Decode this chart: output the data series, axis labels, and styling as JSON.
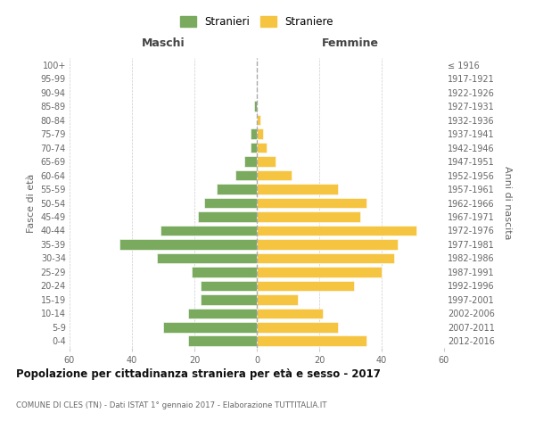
{
  "age_groups": [
    "100+",
    "95-99",
    "90-94",
    "85-89",
    "80-84",
    "75-79",
    "70-74",
    "65-69",
    "60-64",
    "55-59",
    "50-54",
    "45-49",
    "40-44",
    "35-39",
    "30-34",
    "25-29",
    "20-24",
    "15-19",
    "10-14",
    "5-9",
    "0-4"
  ],
  "birth_years": [
    "≤ 1916",
    "1917-1921",
    "1922-1926",
    "1927-1931",
    "1932-1936",
    "1937-1941",
    "1942-1946",
    "1947-1951",
    "1952-1956",
    "1957-1961",
    "1962-1966",
    "1967-1971",
    "1972-1976",
    "1977-1981",
    "1982-1986",
    "1987-1991",
    "1992-1996",
    "1997-2001",
    "2002-2006",
    "2007-2011",
    "2012-2016"
  ],
  "maschi": [
    0,
    0,
    0,
    1,
    0,
    2,
    2,
    4,
    7,
    13,
    17,
    19,
    31,
    44,
    32,
    21,
    18,
    18,
    22,
    30,
    22
  ],
  "femmine": [
    0,
    0,
    0,
    0,
    1,
    2,
    3,
    6,
    11,
    26,
    35,
    33,
    51,
    45,
    44,
    40,
    31,
    13,
    21,
    26,
    35
  ],
  "male_color": "#7aaa5e",
  "female_color": "#f5c542",
  "background_color": "#ffffff",
  "grid_color": "#cccccc",
  "title": "Popolazione per cittadinanza straniera per età e sesso - 2017",
  "subtitle": "COMUNE DI CLES (TN) - Dati ISTAT 1° gennaio 2017 - Elaborazione TUTTITALIA.IT",
  "ylabel_left": "Fasce di età",
  "ylabel_right": "Anni di nascita",
  "xlabel_left": "Maschi",
  "xlabel_right": "Femmine",
  "legend_male": "Stranieri",
  "legend_female": "Straniere",
  "xlim": 60
}
